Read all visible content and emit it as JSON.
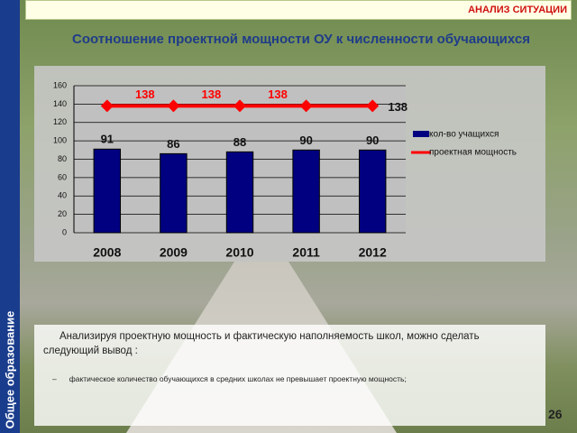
{
  "header": {
    "section": "АНАЛИЗ СИТУАЦИИ",
    "sidebar": "Общее образование",
    "page_number": "26"
  },
  "chart_data": {
    "type": "bar-line",
    "title": "Соотношение проектной мощности ОУ к численности обучающихся",
    "categories": [
      "2008",
      "2009",
      "2010",
      "2011",
      "2012"
    ],
    "series": [
      {
        "name": "кол-во учащихся",
        "type": "bar",
        "color": "#000080",
        "values": [
          91,
          86,
          88,
          90,
          90
        ]
      },
      {
        "name": "проектная мощность",
        "type": "line",
        "color": "#ff0000",
        "values": [
          138,
          138,
          138,
          138,
          138
        ],
        "value_labels": [
          "138",
          "138",
          "138",
          null,
          "138"
        ]
      }
    ],
    "ylim": [
      0,
      160
    ],
    "yticks": [
      0,
      20,
      40,
      60,
      80,
      100,
      120,
      140,
      160
    ],
    "grid": true,
    "legend": "right"
  },
  "text": {
    "paragraph": "Анализируя проектную мощность и фактическую наполняемость школ, можно сделать следующий вывод :",
    "bullet": "фактическое количество обучающихся в средних школах не превышает проектную мощность;"
  }
}
